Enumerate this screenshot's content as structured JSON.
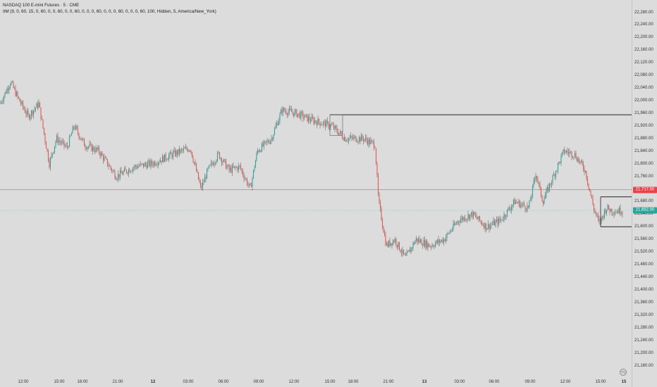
{
  "legend": {
    "symbol": "NASDAQ 100 E-mini Futures · 5 · CME",
    "indicator": "ItM (9, 0, 60, 15, 0, 60, 0, 0, 60, 0, 0, 60, 0, 0, 0, 60, 0, 0, 0, 60, 0, 0, 0, 60, 100, Hidden, 5, America/New_York)"
  },
  "y_axis": {
    "ticks": [
      "22,280.00",
      "22,240.00",
      "22,200.00",
      "22,160.00",
      "22,120.00",
      "22,080.00",
      "22,040.00",
      "22,000.00",
      "21,960.00",
      "21,920.00",
      "21,880.00",
      "21,840.00",
      "21,800.00",
      "21,760.00",
      "21,720.00",
      "21,680.00",
      "21,640.00",
      "21,600.00",
      "21,560.00",
      "21,520.00",
      "21,480.00",
      "21,440.00",
      "21,400.00",
      "21,360.00",
      "21,320.00",
      "21,280.00",
      "21,240.00",
      "21,200.00",
      "21,160.00"
    ]
  },
  "x_axis": {
    "ticks": [
      "12:00",
      "15:00",
      "18:00",
      "21:00",
      "12",
      "03:00",
      "06:00",
      "09:00",
      "12:00",
      "15:00",
      "18:00",
      "21:00",
      "13",
      "03:00",
      "06:00",
      "09:00",
      "12:00",
      "15:00",
      "15"
    ]
  },
  "price_tags": {
    "red_level": "21,717.50",
    "current": "21,652.00"
  },
  "colors": {
    "up": "#26a69a",
    "down": "#ef5350",
    "background": "#dcdcdc",
    "red_line": "#f26b6b",
    "current_tag": "#26a69a"
  },
  "logo_text": "TV",
  "chart_data": {
    "type": "candlestick",
    "ylim": [
      21140,
      22300
    ],
    "levels": [
      {
        "price": 21955,
        "type": "resistance-line",
        "color": "#000000"
      },
      {
        "price": 21717.5,
        "type": "horizontal-line",
        "color": "#f26b6b"
      },
      {
        "price": 21652,
        "type": "current-price",
        "color": "#26a69a"
      },
      {
        "price": 21695,
        "type": "range-top",
        "color": "#000000"
      },
      {
        "price": 21600,
        "type": "range-bottom",
        "color": "#000000"
      }
    ],
    "path": [
      [
        0,
        21990
      ],
      [
        15,
        22060
      ],
      [
        25,
        22010
      ],
      [
        40,
        21950
      ],
      [
        55,
        21990
      ],
      [
        70,
        21800
      ],
      [
        80,
        21880
      ],
      [
        95,
        21850
      ],
      [
        105,
        21920
      ],
      [
        120,
        21860
      ],
      [
        140,
        21840
      ],
      [
        165,
        21760
      ],
      [
        190,
        21790
      ],
      [
        215,
        21800
      ],
      [
        245,
        21830
      ],
      [
        270,
        21850
      ],
      [
        285,
        21720
      ],
      [
        295,
        21780
      ],
      [
        310,
        21830
      ],
      [
        325,
        21780
      ],
      [
        340,
        21790
      ],
      [
        355,
        21720
      ],
      [
        365,
        21840
      ],
      [
        385,
        21880
      ],
      [
        400,
        21970
      ],
      [
        420,
        21960
      ],
      [
        440,
        21940
      ],
      [
        470,
        21920
      ],
      [
        490,
        21880
      ],
      [
        515,
        21880
      ],
      [
        532,
        21860
      ],
      [
        537,
        21680
      ],
      [
        548,
        21540
      ],
      [
        560,
        21560
      ],
      [
        575,
        21500
      ],
      [
        590,
        21560
      ],
      [
        610,
        21540
      ],
      [
        630,
        21560
      ],
      [
        650,
        21620
      ],
      [
        670,
        21640
      ],
      [
        690,
        21600
      ],
      [
        710,
        21620
      ],
      [
        730,
        21680
      ],
      [
        750,
        21660
      ],
      [
        760,
        21770
      ],
      [
        770,
        21680
      ],
      [
        785,
        21760
      ],
      [
        800,
        21840
      ],
      [
        815,
        21830
      ],
      [
        830,
        21780
      ],
      [
        842,
        21660
      ],
      [
        850,
        21610
      ],
      [
        860,
        21660
      ],
      [
        870,
        21650
      ],
      [
        884,
        21652
      ]
    ]
  }
}
